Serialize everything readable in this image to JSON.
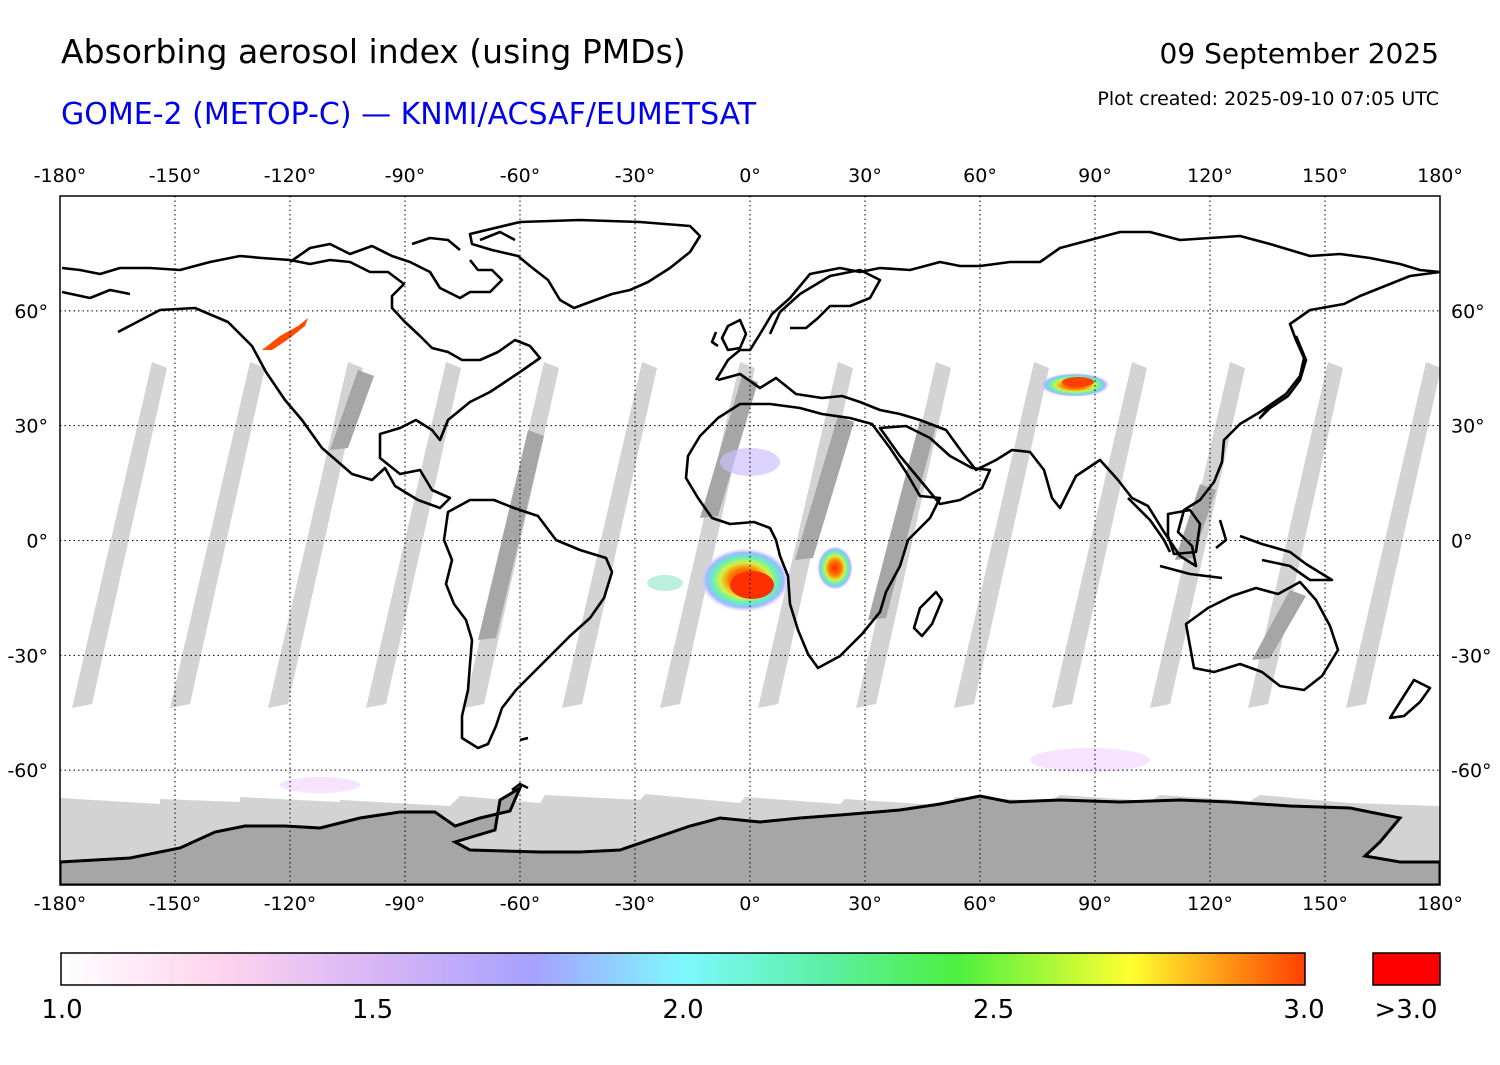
{
  "header": {
    "title": "Absorbing aerosol index (using PMDs)",
    "subtitle": "GOME-2 (METOP-C) — KNMI/ACSAF/EUMETSAT",
    "date": "09 September 2025",
    "created": "Plot created: 2025-09-10 07:05 UTC"
  },
  "colors": {
    "subtitle": "#0000ee",
    "land_outline": "#000000",
    "no_data_light": "#d3d3d3",
    "no_data_dark": "#a6a6a6",
    "over_range": "#ff0000"
  },
  "map": {
    "projection": "plate-carree",
    "lon_range": [
      -180,
      180
    ],
    "lat_range": [
      -90,
      90
    ],
    "lon_ticks": [
      "-180°",
      "-150°",
      "-120°",
      "-90°",
      "-60°",
      "-30°",
      "0°",
      "30°",
      "60°",
      "90°",
      "120°",
      "150°",
      "180°"
    ],
    "lat_ticks": [
      "60°",
      "30°",
      "0°",
      "-30°",
      "-60°"
    ],
    "grid": true,
    "aerosol_plumes": [
      {
        "name": "central-africa-smoke",
        "lon": [
          -10,
          5
        ],
        "lat": [
          -16,
          -5
        ],
        "peak": ">3.0"
      },
      {
        "name": "east-africa-smoke",
        "lon": [
          18,
          25
        ],
        "lat": [
          -12,
          -3
        ],
        "peak": "3.0"
      },
      {
        "name": "central-asia-dust",
        "lon": [
          75,
          90
        ],
        "lat": [
          38,
          42
        ],
        "peak": "3.0"
      },
      {
        "name": "north-america-smoke",
        "lon": [
          -125,
          -115
        ],
        "lat": [
          50,
          57
        ],
        "peak": "3.0"
      }
    ]
  },
  "colorbar": {
    "min_label": "1.0",
    "labels": [
      "1.0",
      "1.5",
      "2.0",
      "2.5",
      "3.0"
    ],
    "over_label": ">3.0",
    "stops": [
      "#ffffff",
      "#ffd6ee",
      "#d9b6f5",
      "#a6a0ff",
      "#7ef8ff",
      "#5af0a0",
      "#4cf040",
      "#ffff30",
      "#ff4000"
    ]
  }
}
